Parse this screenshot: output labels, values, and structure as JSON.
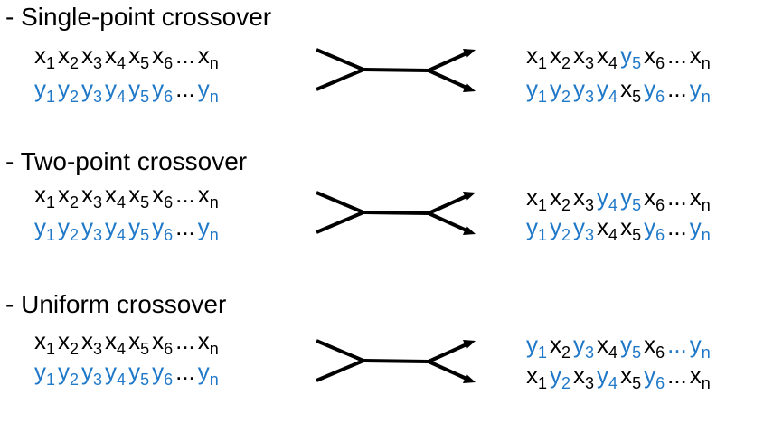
{
  "colors": {
    "x_gene": "#000000",
    "y_gene": "#1f78c8",
    "arrow": "#000000"
  },
  "sections": [
    {
      "title": "- Single-point crossover",
      "parent1": [
        [
          "x",
          "1"
        ],
        [
          "x",
          "2"
        ],
        [
          "x",
          "3"
        ],
        [
          "x",
          "4"
        ],
        [
          "x",
          "5"
        ],
        [
          "x",
          "6"
        ],
        [
          "e",
          "..."
        ],
        [
          "x",
          "n"
        ]
      ],
      "parent2": [
        [
          "y",
          "1"
        ],
        [
          "y",
          "2"
        ],
        [
          "y",
          "3"
        ],
        [
          "y",
          "4"
        ],
        [
          "y",
          "5"
        ],
        [
          "y",
          "6"
        ],
        [
          "e",
          "..."
        ],
        [
          "y",
          "n"
        ]
      ],
      "child1": [
        [
          "x",
          "1"
        ],
        [
          "x",
          "2"
        ],
        [
          "x",
          "3"
        ],
        [
          "x",
          "4"
        ],
        [
          "y",
          "5"
        ],
        [
          "x",
          "6"
        ],
        [
          "e",
          "..."
        ],
        [
          "x",
          "n"
        ]
      ],
      "child2": [
        [
          "y",
          "1"
        ],
        [
          "y",
          "2"
        ],
        [
          "y",
          "3"
        ],
        [
          "y",
          "4"
        ],
        [
          "x",
          "5"
        ],
        [
          "y",
          "6"
        ],
        [
          "e",
          "..."
        ],
        [
          "y",
          "n"
        ]
      ]
    },
    {
      "title": "- Two-point crossover",
      "parent1": [
        [
          "x",
          "1"
        ],
        [
          "x",
          "2"
        ],
        [
          "x",
          "3"
        ],
        [
          "x",
          "4"
        ],
        [
          "x",
          "5"
        ],
        [
          "x",
          "6"
        ],
        [
          "e",
          "..."
        ],
        [
          "x",
          "n"
        ]
      ],
      "parent2": [
        [
          "y",
          "1"
        ],
        [
          "y",
          "2"
        ],
        [
          "y",
          "3"
        ],
        [
          "y",
          "4"
        ],
        [
          "y",
          "5"
        ],
        [
          "y",
          "6"
        ],
        [
          "e",
          "..."
        ],
        [
          "y",
          "n"
        ]
      ],
      "child1": [
        [
          "x",
          "1"
        ],
        [
          "x",
          "2"
        ],
        [
          "x",
          "3"
        ],
        [
          "y",
          "4"
        ],
        [
          "y",
          "5"
        ],
        [
          "x",
          "6"
        ],
        [
          "e",
          "..."
        ],
        [
          "x",
          "n"
        ]
      ],
      "child2": [
        [
          "y",
          "1"
        ],
        [
          "y",
          "2"
        ],
        [
          "y",
          "3"
        ],
        [
          "x",
          "4"
        ],
        [
          "x",
          "5"
        ],
        [
          "y",
          "6"
        ],
        [
          "e",
          "..."
        ],
        [
          "y",
          "n"
        ]
      ]
    },
    {
      "title": "- Uniform crossover",
      "parent1": [
        [
          "x",
          "1"
        ],
        [
          "x",
          "2"
        ],
        [
          "x",
          "3"
        ],
        [
          "x",
          "4"
        ],
        [
          "x",
          "5"
        ],
        [
          "x",
          "6"
        ],
        [
          "e",
          "..."
        ],
        [
          "x",
          "n"
        ]
      ],
      "parent2": [
        [
          "y",
          "1"
        ],
        [
          "y",
          "2"
        ],
        [
          "y",
          "3"
        ],
        [
          "y",
          "4"
        ],
        [
          "y",
          "5"
        ],
        [
          "y",
          "6"
        ],
        [
          "e",
          "..."
        ],
        [
          "y",
          "n"
        ]
      ],
      "child1": [
        [
          "y",
          "1"
        ],
        [
          "x",
          "2"
        ],
        [
          "y",
          "3"
        ],
        [
          "x",
          "4"
        ],
        [
          "y",
          "5"
        ],
        [
          "x",
          "6"
        ],
        [
          "y",
          "..."
        ],
        [
          "y",
          "n"
        ]
      ],
      "child2": [
        [
          "x",
          "1"
        ],
        [
          "y",
          "2"
        ],
        [
          "x",
          "3"
        ],
        [
          "y",
          "4"
        ],
        [
          "x",
          "5"
        ],
        [
          "y",
          "6"
        ],
        [
          "e",
          "..."
        ],
        [
          "x",
          "n"
        ]
      ]
    }
  ]
}
